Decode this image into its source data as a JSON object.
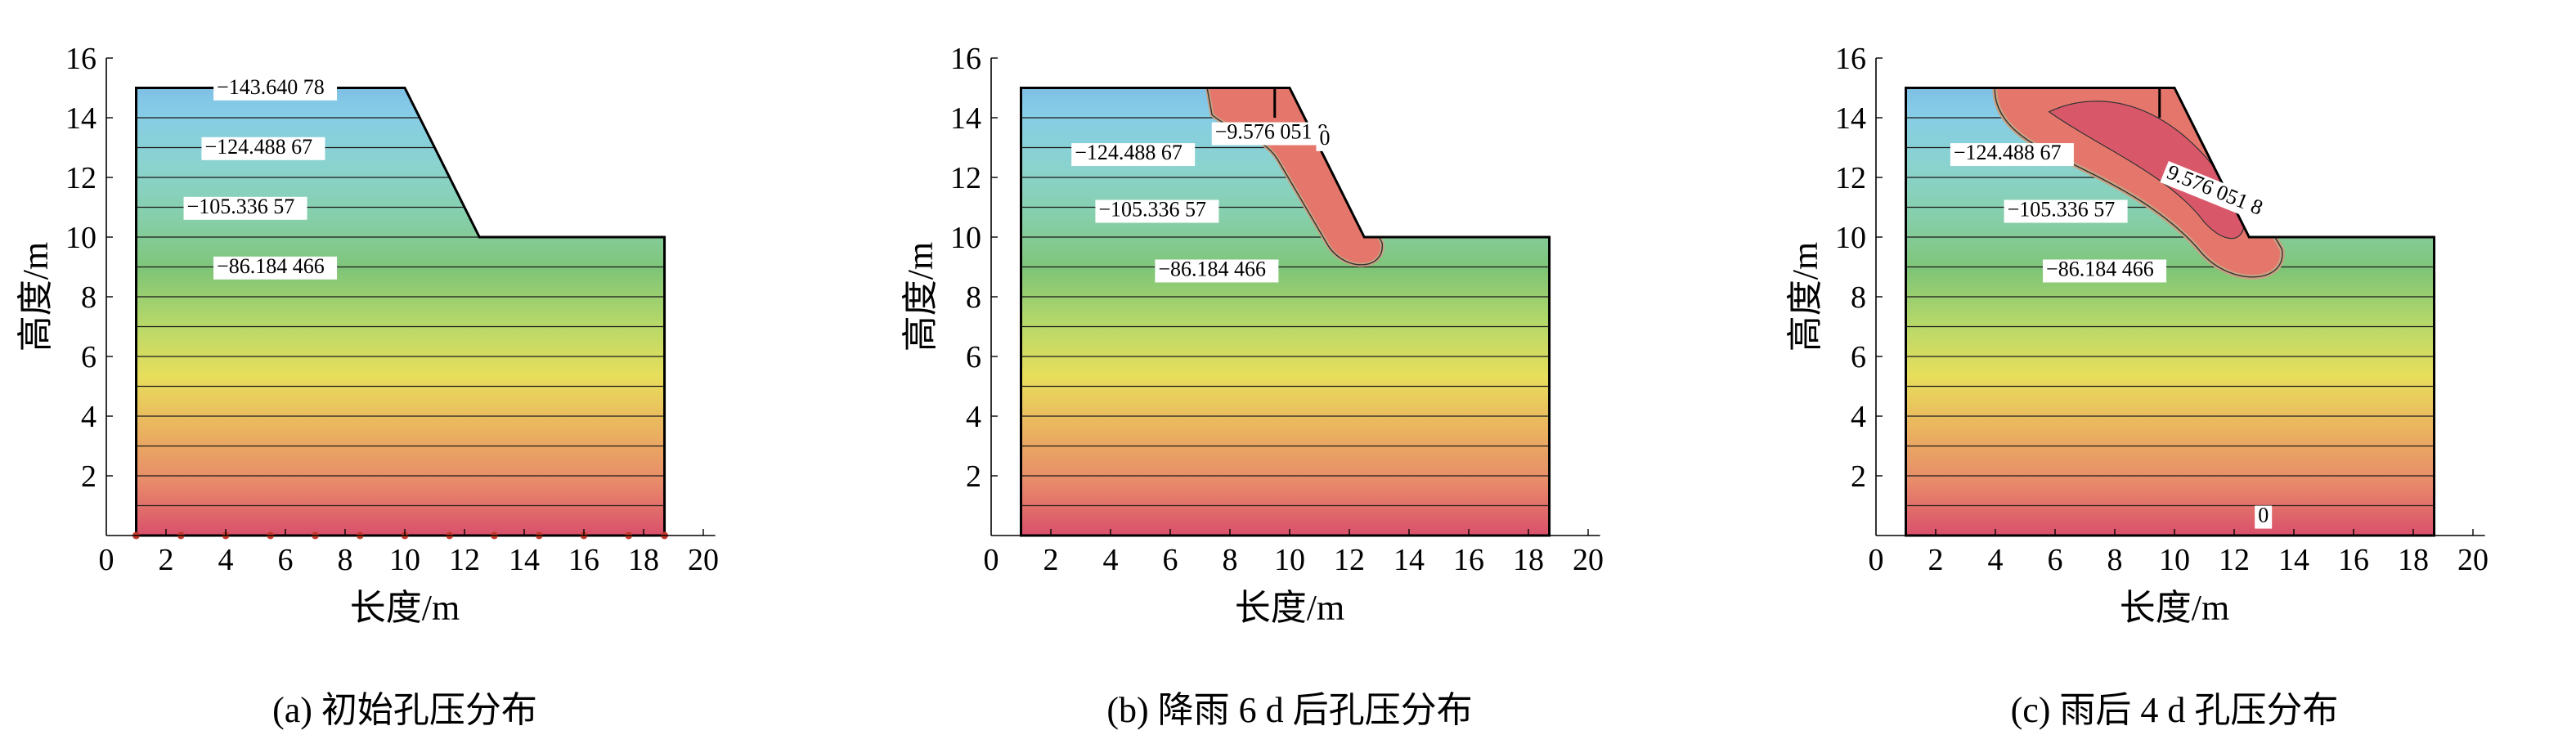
{
  "colors": {
    "band_stops": [
      "#d9506b",
      "#e88a6a",
      "#eab35f",
      "#e8de5c",
      "#b6d869",
      "#7fc577",
      "#86cfab",
      "#8ad3cf",
      "#86cce8",
      "#74b0e0"
    ],
    "outline": "#000000",
    "contour": "#1a1a1a",
    "wet_zone": "#e5766c",
    "wet_core": "#d8586a",
    "wet_rim": "#c9a182",
    "base_dot": "#c0392b"
  },
  "chart_data": [
    {
      "id": "a",
      "type": "contour",
      "caption": "(a) 初始孔压分布",
      "xlabel": "长度/m",
      "ylabel": "高度/m",
      "xlim": [
        0,
        20
      ],
      "ylim": [
        0,
        16
      ],
      "xticks": [
        "0",
        "2",
        "4",
        "6",
        "8",
        "10",
        "12",
        "14",
        "16",
        "18",
        "20"
      ],
      "yticks": [
        "2",
        "4",
        "6",
        "8",
        "10",
        "12",
        "14",
        "16"
      ],
      "slope_profile": [
        [
          1,
          0
        ],
        [
          18.7,
          0
        ],
        [
          18.7,
          10
        ],
        [
          12.5,
          10
        ],
        [
          10,
          15
        ],
        [
          1,
          15
        ]
      ],
      "contour_labels": [
        {
          "text": "−143.640 78",
          "x": 3.7,
          "y": 14.8
        },
        {
          "text": "−124.488 67",
          "x": 3.3,
          "y": 12.8
        },
        {
          "text": "−105.336 57",
          "x": 2.7,
          "y": 10.8
        },
        {
          "text": "−86.184 466",
          "x": 3.7,
          "y": 8.8
        }
      ],
      "base_points_x": [
        1,
        2.5,
        4,
        5.5,
        7,
        8.5,
        10,
        11.5,
        13,
        14.5,
        16,
        17.5,
        18.7
      ]
    },
    {
      "id": "b",
      "type": "contour",
      "caption": "(b) 降雨 6 d 后孔压分布",
      "xlabel": "长度/m",
      "ylabel": "高度/m",
      "xlim": [
        0,
        20
      ],
      "ylim": [
        0,
        16
      ],
      "xticks": [
        "0",
        "2",
        "4",
        "6",
        "8",
        "10",
        "12",
        "14",
        "16",
        "18",
        "20"
      ],
      "yticks": [
        "2",
        "4",
        "6",
        "8",
        "10",
        "12",
        "14",
        "16"
      ],
      "slope_profile": [
        [
          1,
          0
        ],
        [
          18.7,
          0
        ],
        [
          18.7,
          10
        ],
        [
          12.5,
          10
        ],
        [
          10,
          15
        ],
        [
          1,
          15
        ]
      ],
      "contour_labels": [
        {
          "text": "−9.576 051 8",
          "x": 7.5,
          "y": 13.3
        },
        {
          "text": "0",
          "x": 11.0,
          "y": 13.1
        },
        {
          "text": "−124.488 67",
          "x": 2.8,
          "y": 12.6
        },
        {
          "text": "−105.336 57",
          "x": 3.6,
          "y": 10.7
        },
        {
          "text": "−86.184 466",
          "x": 5.6,
          "y": 8.7
        }
      ],
      "wet_zone": {
        "label": "0",
        "shape": "crest-and-face"
      }
    },
    {
      "id": "c",
      "type": "contour",
      "caption": "(c) 雨后 4 d 孔压分布",
      "xlabel": "长度/m",
      "ylabel": "高度/m",
      "xlim": [
        0,
        20
      ],
      "ylim": [
        0,
        16
      ],
      "xticks": [
        "0",
        "2",
        "4",
        "6",
        "8",
        "10",
        "12",
        "14",
        "16",
        "18",
        "20"
      ],
      "yticks": [
        "2",
        "4",
        "6",
        "8",
        "10",
        "12",
        "14",
        "16"
      ],
      "slope_profile": [
        [
          1,
          0
        ],
        [
          18.7,
          0
        ],
        [
          18.7,
          10
        ],
        [
          12.5,
          10
        ],
        [
          10,
          15
        ],
        [
          1,
          15
        ]
      ],
      "contour_labels": [
        {
          "text": "−124.488 67",
          "x": 2.6,
          "y": 12.6
        },
        {
          "text": "−105.336 57",
          "x": 4.4,
          "y": 10.7
        },
        {
          "text": "−86.184 466",
          "x": 5.7,
          "y": 8.7
        },
        {
          "text": "9.576 051 8",
          "x": 9.7,
          "y": 12.0,
          "angle": 22
        },
        {
          "text": "0",
          "x": 12.8,
          "y": 0.45
        }
      ],
      "wet_zone": {
        "label": "9.576 051 8",
        "shape": "bulb"
      }
    }
  ]
}
